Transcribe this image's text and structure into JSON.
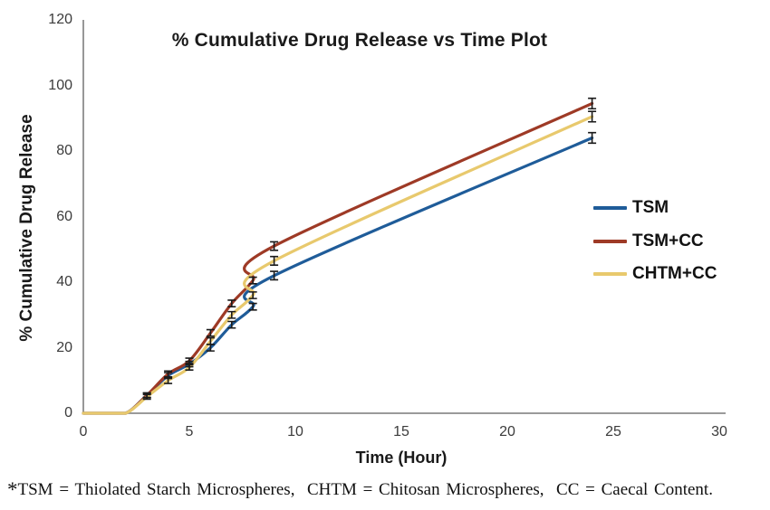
{
  "chart_data": {
    "type": "line",
    "title": "% Cumulative Drug Release vs Time Plot",
    "xlabel": "Time (Hour)",
    "ylabel": "% Cumulative Drug Release",
    "xlim": [
      0,
      30
    ],
    "ylim": [
      0,
      120
    ],
    "x_ticks": [
      0,
      5,
      10,
      15,
      20,
      25,
      30
    ],
    "y_ticks": [
      0,
      20,
      40,
      60,
      80,
      100,
      120
    ],
    "grid": false,
    "smooth": true,
    "legend_position": "middle-right",
    "x": [
      0,
      1,
      2,
      3,
      4,
      5,
      6,
      7,
      8,
      9,
      24
    ],
    "series": [
      {
        "name": "TSM",
        "color": "#1F5C99",
        "values": [
          0,
          0,
          0,
          5.5,
          11.5,
          15,
          20,
          27,
          32.5,
          42,
          84
        ],
        "errors": [
          0,
          0,
          0,
          0.7,
          0.9,
          0.8,
          1,
          1,
          1,
          1.3,
          1.6
        ]
      },
      {
        "name": "TSM+CC",
        "color": "#9E3A26",
        "values": [
          0,
          0,
          0,
          5.5,
          12,
          16,
          24.5,
          33.5,
          40.5,
          51,
          94.5
        ],
        "errors": [
          0,
          0,
          0,
          0.7,
          0.9,
          0.8,
          1,
          1,
          1,
          1.3,
          1.6
        ]
      },
      {
        "name": "CHTM+CC",
        "color": "#E8C96D",
        "values": [
          0,
          0,
          0,
          5,
          10,
          14,
          22,
          30,
          36,
          46.5,
          90.5
        ],
        "errors": [
          0,
          0,
          0,
          0.7,
          0.9,
          0.8,
          1,
          1,
          1,
          1.3,
          1.6
        ]
      }
    ],
    "error_bar_color": "#1a1a1a",
    "axis_color": "#8c8c8c",
    "tick_label_color": "#3b3b3b"
  },
  "footnote": {
    "asterisk": "*",
    "text": "TSM = Thiolated Starch Microspheres,  CHTM = Chitosan Microspheres,  CC = Caecal Content."
  }
}
